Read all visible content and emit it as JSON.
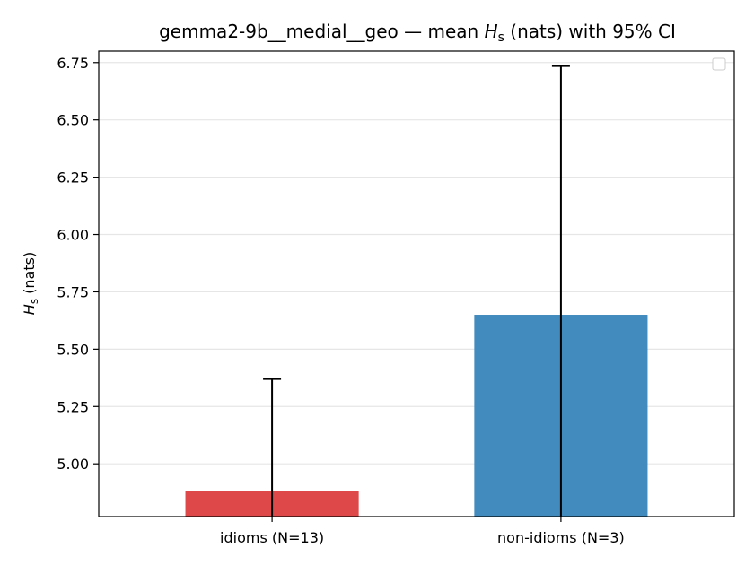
{
  "chart_data": {
    "type": "bar",
    "title_prefix": "gemma2-9b__medial__geo — mean ",
    "title_symbol": "H",
    "title_subscript": "s",
    "title_suffix": " (nats) with 95% CI",
    "ylabel_symbol": "H",
    "ylabel_subscript": "s",
    "ylabel_suffix": " (nats)",
    "categories": [
      "idioms (N=13)",
      "non-idioms (N=3)"
    ],
    "values": [
      4.88,
      5.65
    ],
    "ci_upper": [
      5.37,
      6.735
    ],
    "colors": [
      "#de4849",
      "#428bbe"
    ],
    "ylim": [
      4.77,
      6.8
    ],
    "yticks": [
      "5.00",
      "5.25",
      "5.50",
      "5.75",
      "6.00",
      "6.25",
      "6.50",
      "6.75"
    ],
    "grid": "y",
    "legend": "top-right (empty)"
  }
}
